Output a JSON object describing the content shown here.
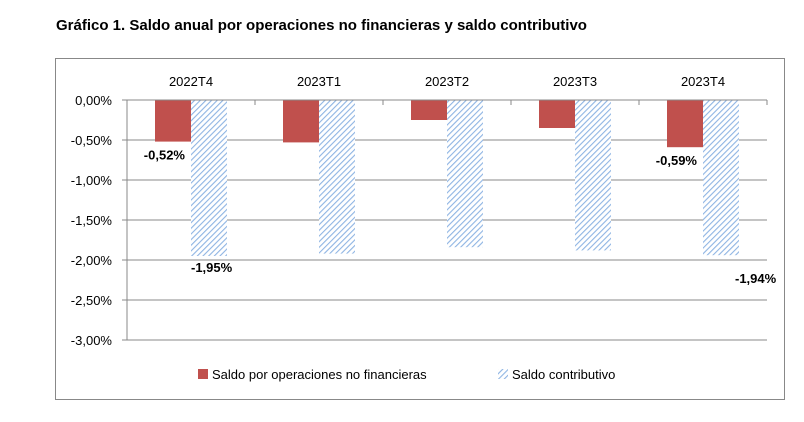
{
  "chart_data": {
    "type": "bar",
    "title": "Gráfico 1. Saldo anual por operaciones no financieras y saldo contributivo",
    "categories": [
      "2022T4",
      "2023T1",
      "2023T2",
      "2023T3",
      "2023T4"
    ],
    "series": [
      {
        "name": "Saldo por operaciones no financieras",
        "values": [
          -0.52,
          -0.53,
          -0.25,
          -0.35,
          -0.59
        ],
        "color": "#c0504d",
        "pattern": "solid",
        "data_labels": [
          "-0,52%",
          null,
          null,
          null,
          "-0,59%"
        ]
      },
      {
        "name": "Saldo contributivo",
        "values": [
          -1.95,
          -1.92,
          -1.84,
          -1.88,
          -1.94
        ],
        "color": "#8eb4e3",
        "pattern": "diagonal-hatch",
        "data_labels": [
          "-1,95%",
          null,
          null,
          null,
          "-1,94%"
        ]
      }
    ],
    "yticks": [
      "0,00%",
      "-0,50%",
      "-1,00%",
      "-1,50%",
      "-2,00%",
      "-2,50%",
      "-3,00%"
    ],
    "ylim": [
      -3,
      0
    ],
    "grid": true,
    "category_axis_position": "top",
    "legend": "bottom"
  }
}
